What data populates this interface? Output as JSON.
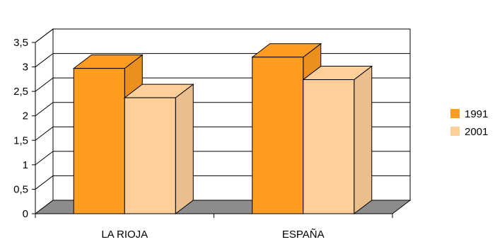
{
  "chart_data": {
    "type": "bar",
    "style": "3d-clustered",
    "categories": [
      "LA RIOJA",
      "ESPAÑA"
    ],
    "series": [
      {
        "name": "1991",
        "values": [
          2.97,
          3.2
        ],
        "color": "#FF9D22"
      },
      {
        "name": "2001",
        "values": [
          2.37,
          2.74
        ],
        "color": "#FFCF99"
      }
    ],
    "title": "",
    "xlabel": "",
    "ylabel": "",
    "ylim": [
      0,
      3.5
    ],
    "yticks": [
      "0",
      "0,5",
      "1",
      "1,5",
      "2",
      "2,5",
      "3",
      "3,5"
    ],
    "grid": true,
    "legend": "right",
    "floor_color": "#8C8C8C"
  }
}
